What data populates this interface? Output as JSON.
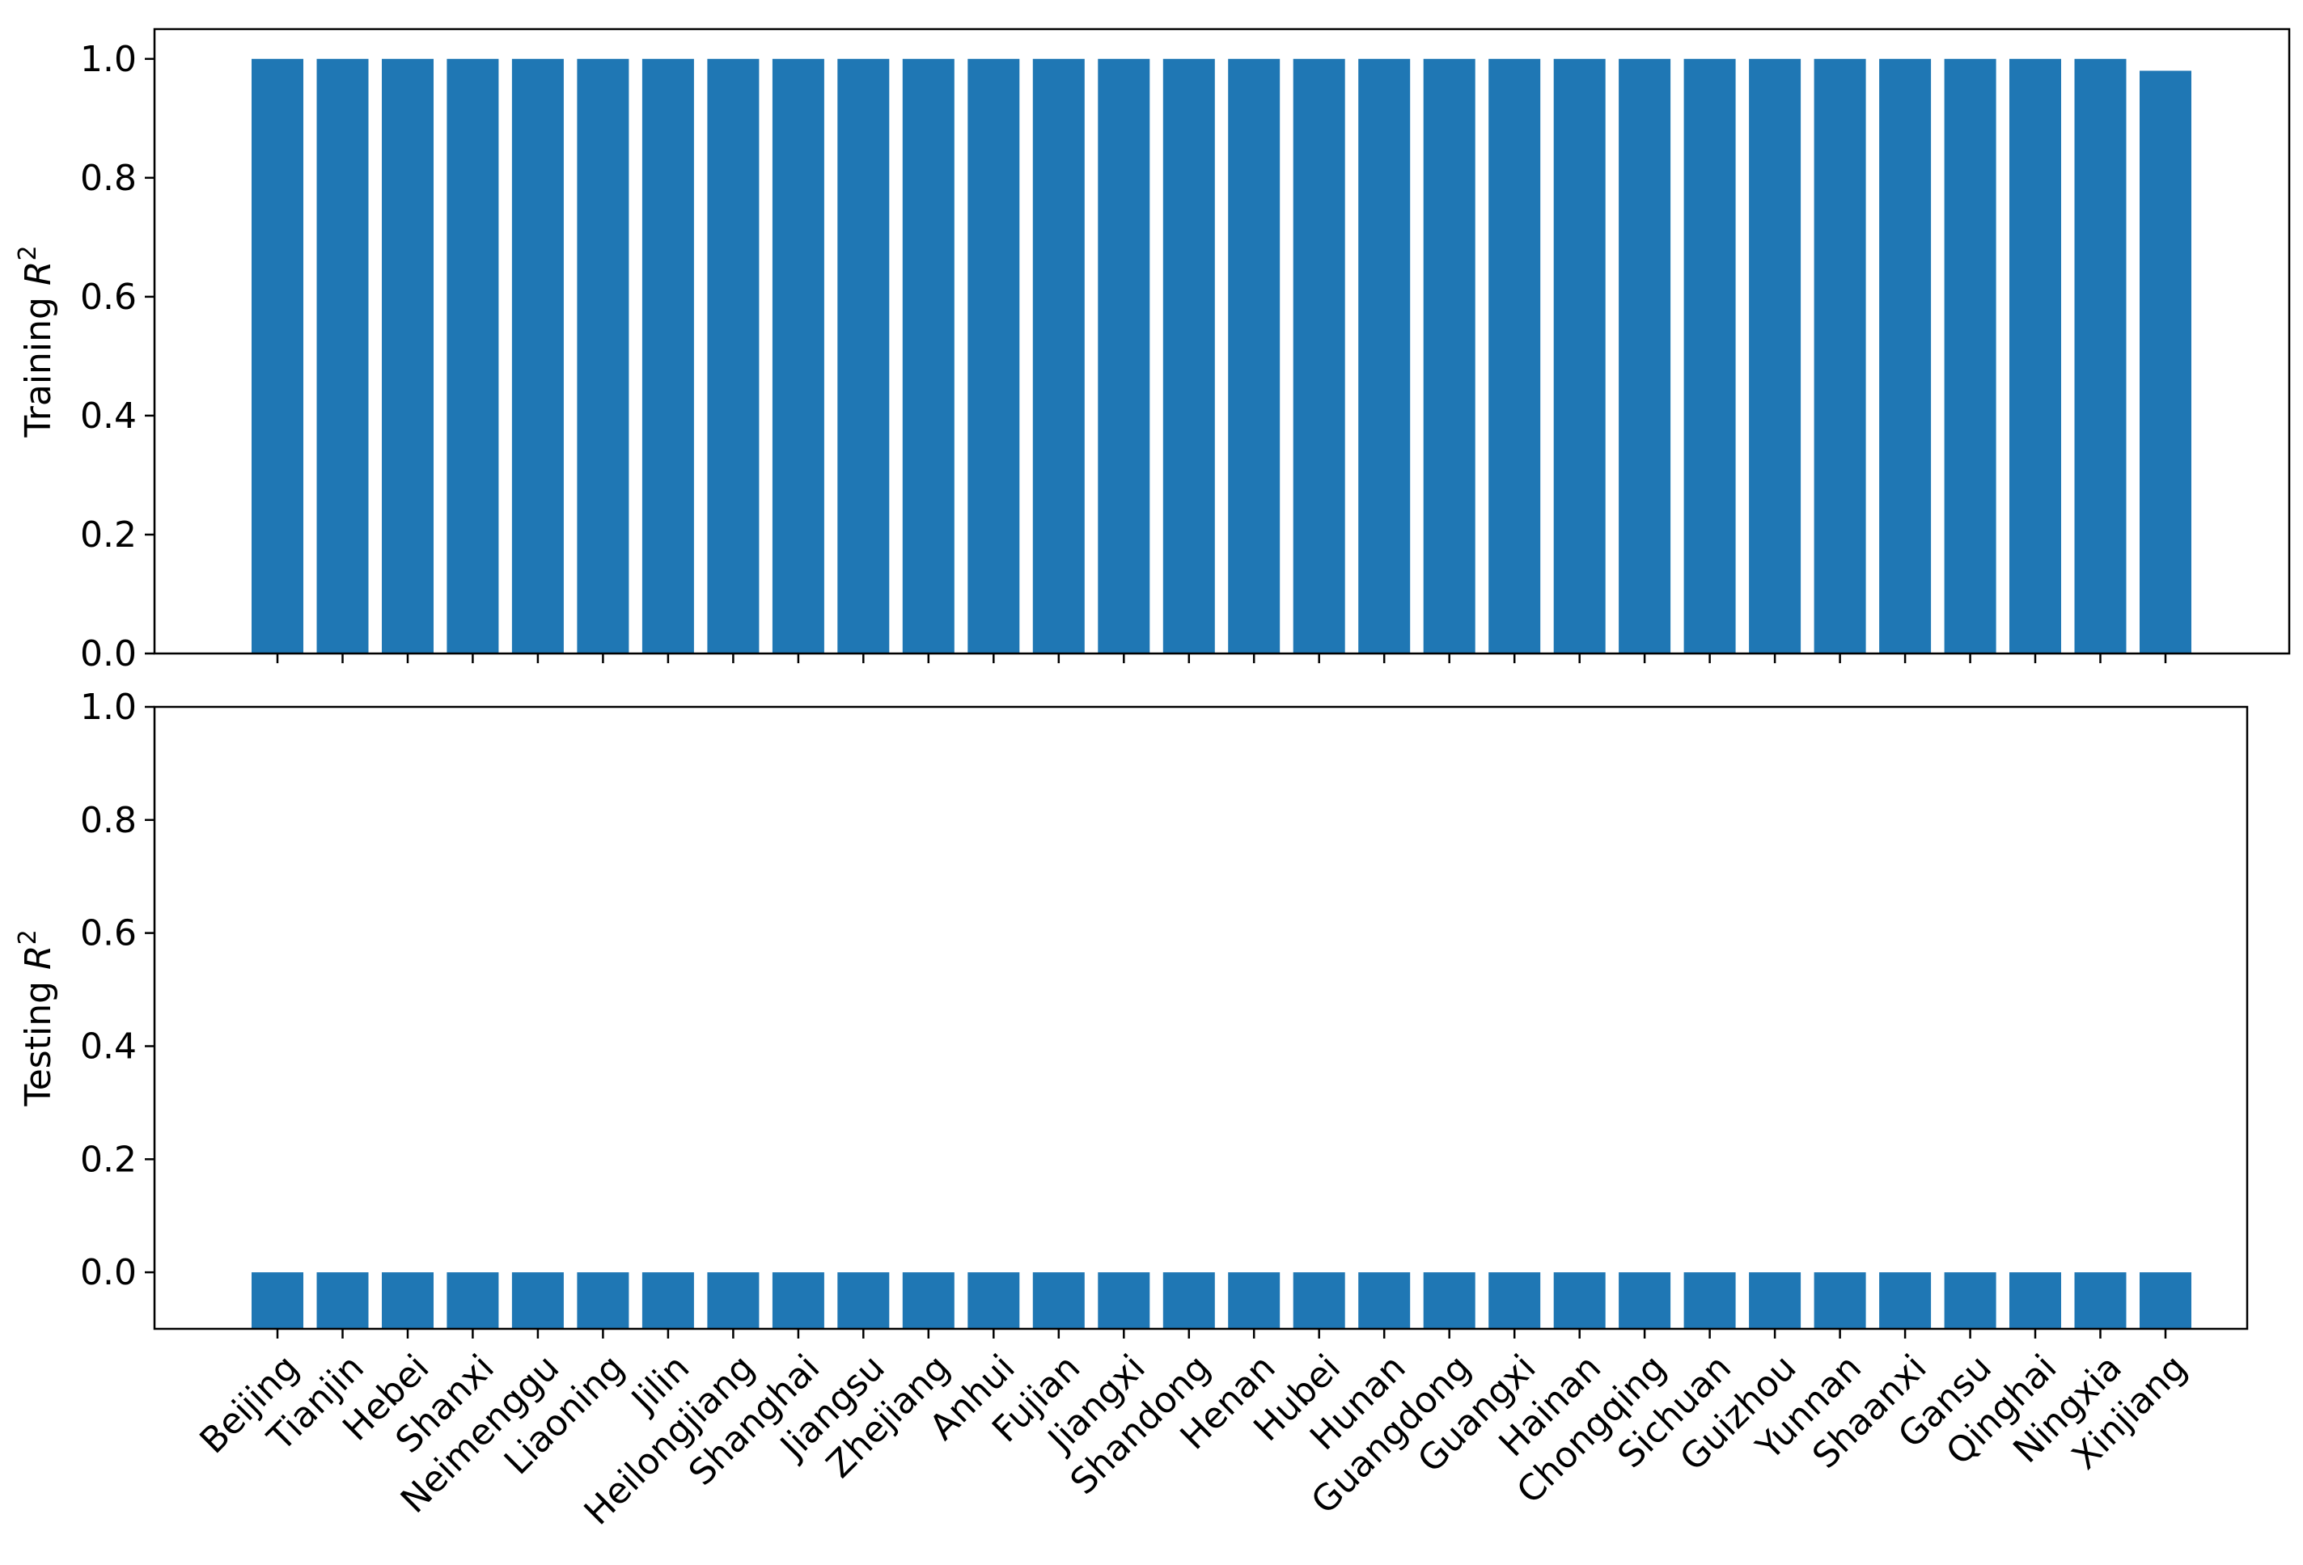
{
  "colors": {
    "bar": "#1f77b4",
    "axis": "#000000",
    "background": "#ffffff"
  },
  "categories": [
    "Beijing",
    "Tianjin",
    "Hebei",
    "Shanxi",
    "Neimenggu",
    "Liaoning",
    "Jilin",
    "Heilongjiang",
    "Shanghai",
    "Jiangsu",
    "Zhejiang",
    "Anhui",
    "Fujian",
    "Jiangxi",
    "Shandong",
    "Henan",
    "Hubei",
    "Hunan",
    "Guangdong",
    "Guangxi",
    "Hainan",
    "Chongqing",
    "Sichuan",
    "Guizhou",
    "Yunnan",
    "Shaanxi",
    "Gansu",
    "Qinghai",
    "Ningxia",
    "Xinjiang"
  ],
  "chart_data": [
    {
      "type": "bar",
      "title": "",
      "ylabel": "Training R²",
      "ylabel_text": "Training ",
      "ylabel_var": "R",
      "ylabel_sup": "2",
      "ylim": [
        0.0,
        1.05
      ],
      "yticks": [
        "0.0",
        "0.2",
        "0.4",
        "0.6",
        "0.8",
        "1.0"
      ],
      "grid": false,
      "x_tick_labels_shown": false,
      "values": [
        1,
        1,
        1,
        1,
        1,
        1,
        1,
        1,
        1,
        1,
        1,
        1,
        1,
        1,
        1,
        1,
        1,
        1,
        1,
        1,
        1,
        1,
        1,
        1,
        1,
        1,
        1,
        1,
        1,
        0.98
      ]
    },
    {
      "type": "bar",
      "title": "",
      "ylabel": "Testing R²",
      "ylabel_text": "Testing ",
      "ylabel_var": "R",
      "ylabel_sup": "2",
      "ylim": [
        -0.1,
        1.0
      ],
      "yticks": [
        "0.0",
        "0.2",
        "0.4",
        "0.6",
        "0.8",
        "1.0"
      ],
      "grid": false,
      "x_tick_labels_shown": true,
      "values": [
        0,
        0,
        0,
        0,
        0,
        0,
        0,
        0,
        0,
        0,
        0,
        0,
        0,
        0,
        0,
        0,
        0,
        0,
        0,
        0,
        0,
        0,
        0,
        0,
        0,
        0,
        0,
        0,
        0,
        0
      ],
      "bar_floor": -0.1
    }
  ]
}
